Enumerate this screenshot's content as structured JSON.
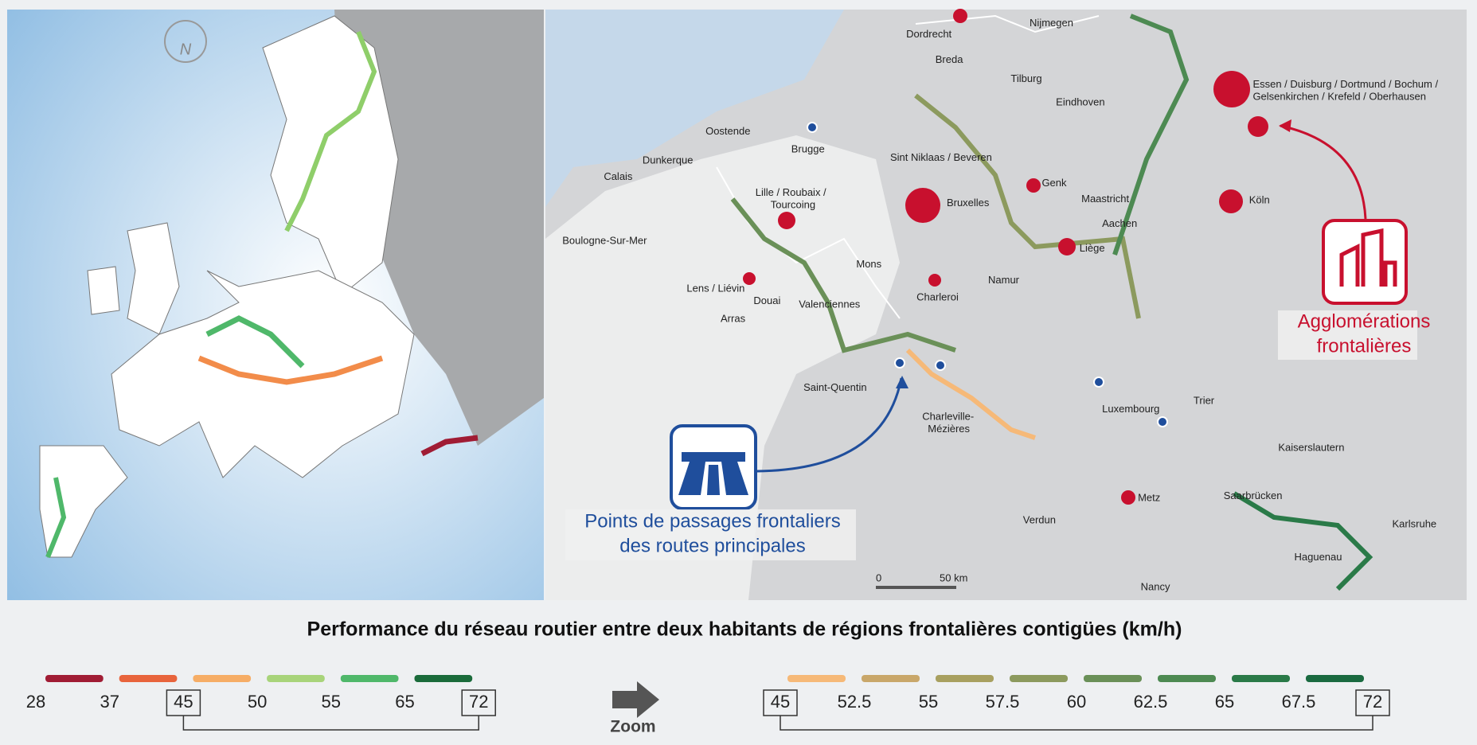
{
  "title": "Performance du réseau routier entre deux habitants de régions frontalières contigües (km/h)",
  "compass": "N",
  "map_labels": [
    "Nijmegen",
    "Dordrecht",
    "Breda",
    "Tilburg",
    "Eindhoven",
    "Essen / Duisburg / Dortmund / Bochum /",
    "Gelsenkirchen / Krefeld / Oberhausen",
    "Oostende",
    "Brugge",
    "Sint Niklaas / Beveren",
    "Dunkerque",
    "Calais",
    "Lille / Roubaix /",
    "Tourcoing",
    "Genk",
    "Bruxelles",
    "Maastricht",
    "Aachen",
    "Köln",
    "Liège",
    "Boulogne-Sur-Mer",
    "Mons",
    "Namur",
    "Lens / Liévin",
    "Douai",
    "Valenciennes",
    "Charleroi",
    "Arras",
    "Saint-Quentin",
    "Charleville-",
    "Mézières",
    "Luxembourg",
    "Trier",
    "Kaiserslautern",
    "Metz",
    "Saarbrücken",
    "Karlsruhe",
    "Haguenau",
    "Verdun",
    "Nancy"
  ],
  "scale_bar": [
    "0",
    "50 km"
  ],
  "callouts": {
    "agglomerations": [
      "Agglomérations",
      "frontalières"
    ],
    "crossings": [
      "Points de passages frontaliers",
      "des routes principales"
    ]
  },
  "legend_left": {
    "values": [
      28,
      37,
      45,
      50,
      55,
      65,
      72
    ],
    "colors": [
      "#a01c34",
      "#e8643c",
      "#f6ad66",
      "#a8d47a",
      "#4fb86a",
      "#1a6b3a"
    ]
  },
  "zoom": "Zoom",
  "legend_right": {
    "values": [
      45,
      52.5,
      55,
      57.5,
      60,
      62.5,
      65,
      67.5,
      72
    ],
    "colors": [
      "#f6b978",
      "#c9a76a",
      "#a8a060",
      "#8c9a5e",
      "#6a9058",
      "#4d8a52",
      "#2a7a48",
      "#1a6a40"
    ]
  }
}
